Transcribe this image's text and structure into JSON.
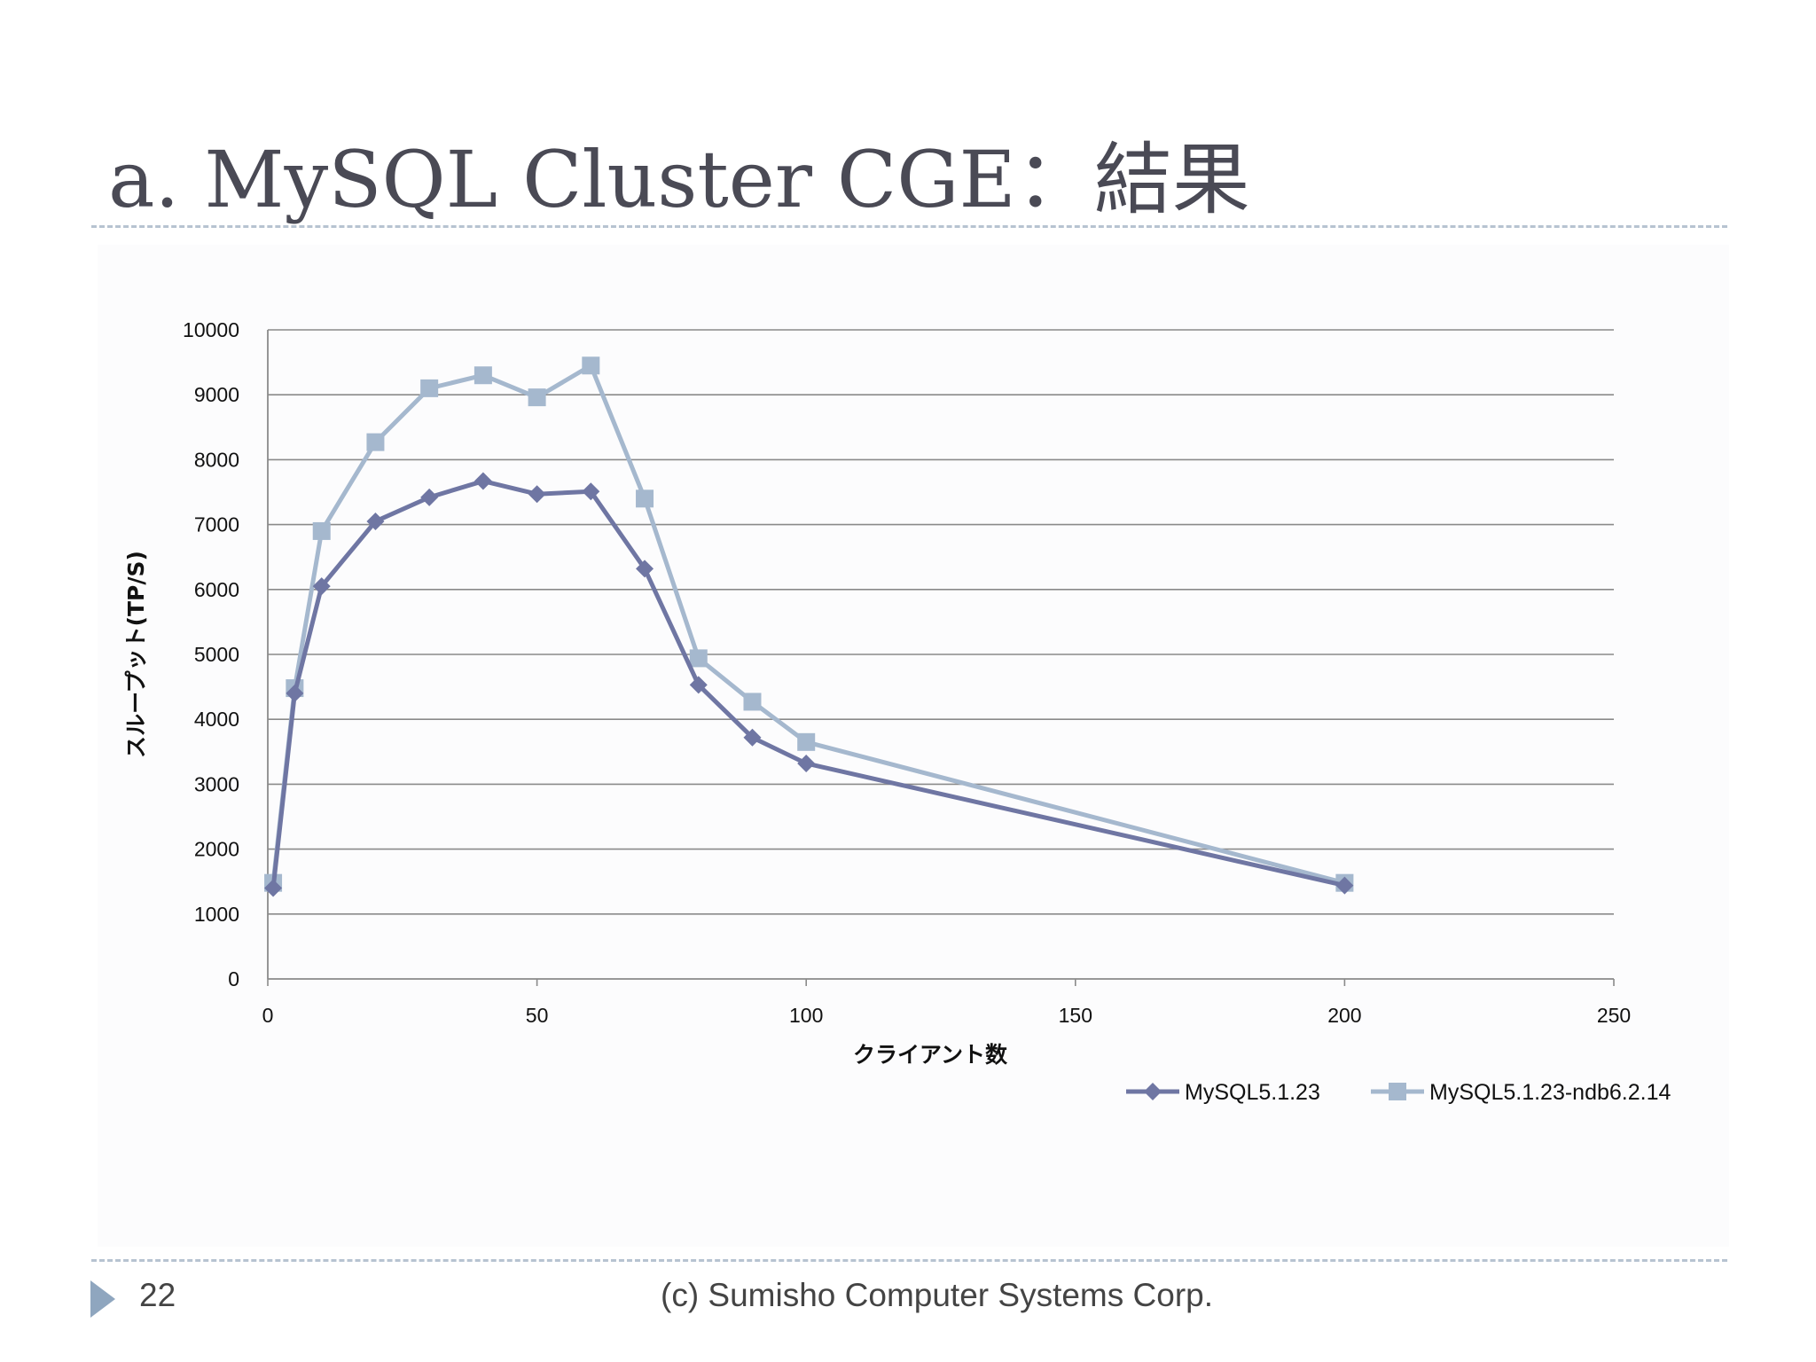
{
  "slide": {
    "title": "a. MySQL Cluster CGE：結果",
    "page_number": "22",
    "footer": "(c) Sumisho Computer Systems Corp."
  },
  "chart_data": {
    "type": "line",
    "xlabel": "クライアント数",
    "ylabel": "スループット(TP/S)",
    "xlim": [
      0,
      250
    ],
    "ylim": [
      0,
      10000
    ],
    "xticks": [
      0,
      50,
      100,
      150,
      200,
      250
    ],
    "yticks": [
      0,
      1000,
      2000,
      3000,
      4000,
      5000,
      6000,
      7000,
      8000,
      9000,
      10000
    ],
    "grid": "horizontal",
    "legend": "bottom-right",
    "series": [
      {
        "name": "MySQL5.1.23",
        "color": "#6f76a3",
        "marker": "diamond",
        "x": [
          1,
          5,
          10,
          20,
          30,
          40,
          50,
          60,
          70,
          80,
          90,
          100,
          200
        ],
        "y": [
          1400,
          4400,
          6050,
          7050,
          7420,
          7670,
          7470,
          7510,
          6320,
          4530,
          3720,
          3320,
          1440
        ]
      },
      {
        "name": "MySQL5.1.23-ndb6.2.14",
        "color": "#a5b8ce",
        "marker": "square",
        "x": [
          1,
          5,
          10,
          20,
          30,
          40,
          50,
          60,
          70,
          80,
          90,
          100,
          200
        ],
        "y": [
          1480,
          4480,
          6900,
          8270,
          9100,
          9300,
          8960,
          9450,
          7400,
          4940,
          4270,
          3650,
          1480
        ]
      }
    ]
  }
}
